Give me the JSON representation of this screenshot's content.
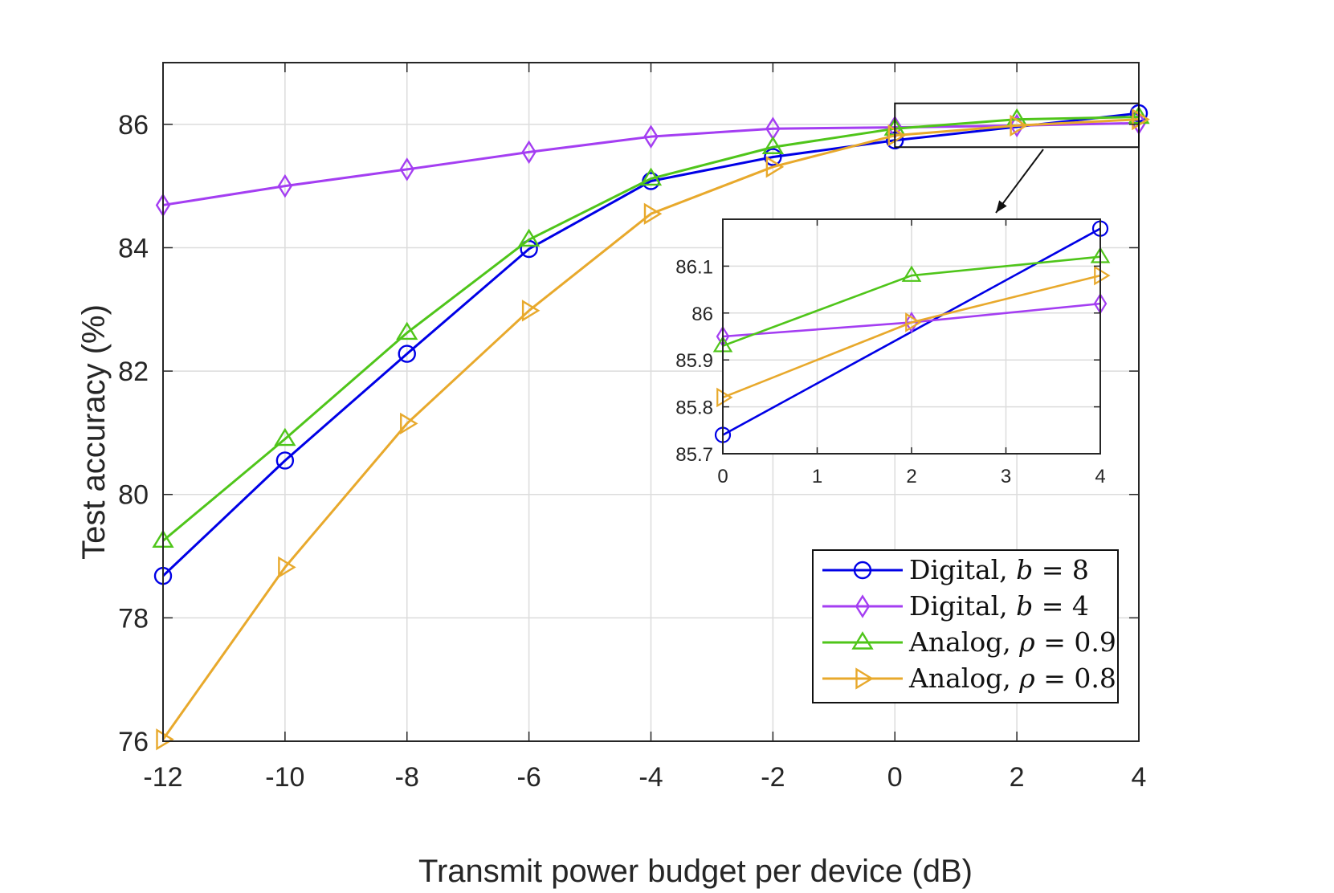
{
  "chart_data": {
    "type": "line",
    "xlabel": "Transmit power budget per device (dB)",
    "ylabel": "Test accuracy (%)",
    "xlim": [
      -12,
      4
    ],
    "ylim": [
      76,
      87
    ],
    "x_tick_labels": [
      "-12",
      "-10",
      "-8",
      "-6",
      "-4",
      "-2",
      "0",
      "2",
      "4"
    ],
    "y_tick_labels": [
      "76",
      "78",
      "80",
      "82",
      "84",
      "86"
    ],
    "grid": true,
    "legend_position": "bottom-right",
    "series": [
      {
        "id": "digital-b8",
        "name": "Digital, b = 8",
        "legend_prefix": "Digital, ",
        "legend_var": "b",
        "legend_rest": " = 8",
        "color": "#0000e6",
        "marker": "circle",
        "x": [
          -12,
          -10,
          -8,
          -6,
          -4,
          -2,
          0,
          4
        ],
        "values": [
          78.68,
          80.55,
          82.28,
          83.98,
          85.08,
          85.47,
          85.74,
          86.18
        ]
      },
      {
        "id": "digital-b4",
        "name": "Digital, b = 4",
        "legend_prefix": "Digital, ",
        "legend_var": "b",
        "legend_rest": " = 4",
        "color": "#a43ef2",
        "marker": "diamond",
        "x": [
          -12,
          -10,
          -8,
          -6,
          -4,
          -2,
          0,
          2,
          4
        ],
        "values": [
          84.69,
          85.0,
          85.27,
          85.55,
          85.8,
          85.93,
          85.95,
          85.98,
          86.02
        ]
      },
      {
        "id": "analog-rho09",
        "name": "Analog, ρ = 0.9",
        "legend_prefix": "Analog, ",
        "legend_var": "ρ",
        "legend_rest": " = 0.9",
        "color": "#4fc51a",
        "marker": "triangle-up",
        "x": [
          -12,
          -10,
          -8,
          -6,
          -4,
          -2,
          0,
          2,
          4
        ],
        "values": [
          79.25,
          80.9,
          82.62,
          84.13,
          85.12,
          85.63,
          85.93,
          86.08,
          86.12
        ]
      },
      {
        "id": "analog-rho08",
        "name": "Analog, ρ = 0.8",
        "legend_prefix": "Analog, ",
        "legend_var": "ρ",
        "legend_rest": " = 0.8",
        "color": "#e8a92c",
        "marker": "triangle-right",
        "x": [
          -12,
          -10,
          -8,
          -6,
          -4,
          -2,
          0,
          2,
          4
        ],
        "values": [
          76.03,
          78.82,
          81.15,
          82.98,
          84.55,
          85.31,
          85.82,
          85.98,
          86.08
        ]
      }
    ],
    "inset": {
      "xlim": [
        0,
        4
      ],
      "ylim": [
        85.7,
        86.2
      ],
      "x_tick_labels": [
        "0",
        "1",
        "2",
        "3",
        "4"
      ],
      "y_tick_labels": [
        "85.7",
        "85.8",
        "85.9",
        "86",
        "86.1"
      ],
      "series": [
        {
          "id": "digital-b8",
          "x": [
            0,
            4
          ],
          "values": [
            85.74,
            86.18
          ]
        },
        {
          "id": "digital-b4",
          "x": [
            0,
            2,
            4
          ],
          "values": [
            85.95,
            85.98,
            86.02
          ]
        },
        {
          "id": "analog-rho09",
          "x": [
            0,
            2,
            4
          ],
          "values": [
            85.93,
            86.08,
            86.12
          ]
        },
        {
          "id": "analog-rho08",
          "x": [
            0,
            2,
            4
          ],
          "values": [
            85.82,
            85.98,
            86.08
          ]
        }
      ]
    }
  }
}
